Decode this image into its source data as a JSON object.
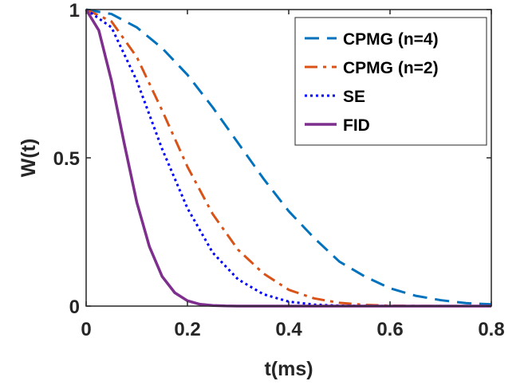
{
  "chart_data": {
    "type": "line",
    "title": "",
    "xlabel": "t(ms)",
    "ylabel": "W(t)",
    "xlim": [
      0,
      0.8
    ],
    "ylim": [
      0,
      1
    ],
    "x_ticks": [
      "0",
      "0.2",
      "0.4",
      "0.6",
      "0.8"
    ],
    "y_ticks": [
      "0",
      "0.5",
      "1"
    ],
    "grid": false,
    "legend_position": "top-right",
    "series": [
      {
        "name": "CPMG (n=4)",
        "color": "#0072BD",
        "dash": "dashed",
        "x": [
          0,
          0.05,
          0.1,
          0.15,
          0.2,
          0.25,
          0.3,
          0.35,
          0.4,
          0.45,
          0.5,
          0.55,
          0.6,
          0.65,
          0.7,
          0.75,
          0.8
        ],
        "y": [
          1.0,
          0.985,
          0.94,
          0.87,
          0.78,
          0.67,
          0.55,
          0.43,
          0.32,
          0.23,
          0.15,
          0.1,
          0.06,
          0.035,
          0.02,
          0.01,
          0.006
        ]
      },
      {
        "name": "CPMG (n=2)",
        "color": "#D95319",
        "dash": "dashdot",
        "x": [
          0,
          0.05,
          0.1,
          0.15,
          0.2,
          0.25,
          0.3,
          0.35,
          0.4,
          0.45,
          0.5,
          0.55,
          0.6,
          0.65,
          0.7,
          0.75,
          0.8
        ],
        "y": [
          1.0,
          0.96,
          0.84,
          0.66,
          0.47,
          0.31,
          0.19,
          0.11,
          0.055,
          0.026,
          0.011,
          0.004,
          0.0015,
          0.0005,
          0.0002,
          0.0001,
          0.0
        ]
      },
      {
        "name": "SE",
        "color": "#0000FF",
        "dash": "dotted",
        "x": [
          0,
          0.05,
          0.1,
          0.15,
          0.2,
          0.25,
          0.3,
          0.35,
          0.4,
          0.45,
          0.5,
          0.55,
          0.6,
          0.65,
          0.7,
          0.75,
          0.8
        ],
        "y": [
          1.0,
          0.94,
          0.76,
          0.53,
          0.33,
          0.18,
          0.09,
          0.04,
          0.015,
          0.005,
          0.0015,
          0.0004,
          0.0001,
          0.0,
          0.0,
          0.0,
          0.0
        ]
      },
      {
        "name": "FID",
        "color": "#7E2F8E",
        "dash": "solid",
        "x": [
          0,
          0.025,
          0.05,
          0.075,
          0.1,
          0.125,
          0.15,
          0.175,
          0.2,
          0.225,
          0.25,
          0.275,
          0.3,
          0.35,
          0.4,
          0.5,
          0.6,
          0.7,
          0.8
        ],
        "y": [
          1.0,
          0.93,
          0.76,
          0.55,
          0.35,
          0.2,
          0.1,
          0.045,
          0.018,
          0.006,
          0.002,
          0.0005,
          0.0001,
          0.0,
          0.0,
          0.0,
          0.0,
          0.0,
          0.0
        ]
      }
    ]
  }
}
